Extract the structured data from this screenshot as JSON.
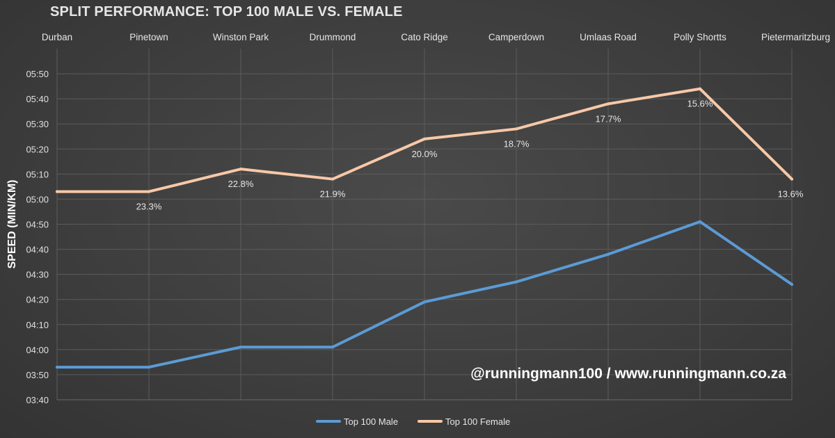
{
  "chart_data": {
    "type": "line",
    "title": "SPLIT PERFORMANCE: TOP 100 MALE VS. FEMALE",
    "xlabel": "",
    "ylabel": "SPEED (MIN/KM)",
    "categories": [
      "Durban",
      "Pinetown",
      "Winston Park",
      "Drummond",
      "Cato Ridge",
      "Camperdown",
      "Umlaas Road",
      "Polly Shortts",
      "Pietermaritzburg"
    ],
    "x_axis_position": "top",
    "ylim_seconds": [
      220,
      360
    ],
    "y_ticks": [
      "03:40",
      "03:50",
      "04:00",
      "04:10",
      "04:20",
      "04:30",
      "04:40",
      "04:50",
      "05:00",
      "05:10",
      "05:20",
      "05:30",
      "05:40",
      "05:50"
    ],
    "y_tick_seconds": [
      220,
      230,
      240,
      250,
      260,
      270,
      280,
      290,
      300,
      310,
      320,
      330,
      340,
      350
    ],
    "grid": true,
    "legend_position": "bottom",
    "series": [
      {
        "name": "Top 100 Male",
        "color": "#5b9bd5",
        "values": [
          "03:53",
          "03:53",
          "04:01",
          "04:01",
          "04:19",
          "04:27",
          "04:38",
          "04:51",
          "04:26"
        ],
        "values_seconds": [
          233,
          233,
          241,
          241,
          259,
          267,
          278,
          291,
          266
        ]
      },
      {
        "name": "Top 100 Female",
        "color": "#f7c8a8",
        "values": [
          "05:03",
          "05:03",
          "05:12",
          "05:08",
          "05:24",
          "05:28",
          "05:38",
          "05:44",
          "05:08"
        ],
        "values_seconds": [
          303,
          303,
          312,
          308,
          324,
          328,
          338,
          344,
          308
        ],
        "data_labels": [
          "",
          "23.3%",
          "22.8%",
          "21.9%",
          "20.0%",
          "18.7%",
          "17.7%",
          "15.6%",
          "13.6%"
        ]
      }
    ]
  },
  "watermark": "@runningmann100 / www.runningmann.co.za"
}
